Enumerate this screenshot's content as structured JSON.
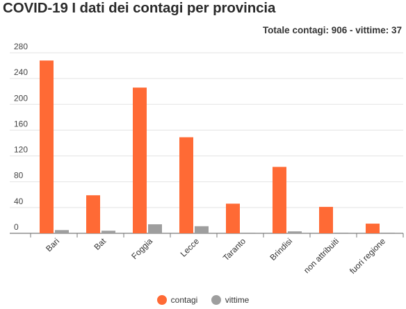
{
  "title": "COVID-19 I dati dei contagi per provincia",
  "subtitle": "Totale contagi: 906 - vittime: 37",
  "chart_data": {
    "type": "bar",
    "categories": [
      "Bari",
      "Bat",
      "Foggia",
      "Lecce",
      "Taranto",
      "Brindisi",
      "non attribuiti",
      "fuori regione"
    ],
    "series": [
      {
        "name": "contagi",
        "color": "#ff6a35",
        "values": [
          268,
          59,
          226,
          149,
          46,
          103,
          41,
          15
        ]
      },
      {
        "name": "vittime",
        "color": "#9e9e9e",
        "values": [
          5,
          4,
          14,
          11,
          1,
          3,
          0,
          0
        ]
      }
    ],
    "yticks": [
      0,
      40,
      80,
      120,
      160,
      200,
      240,
      280
    ],
    "ylim": [
      0,
      280
    ],
    "grid": true,
    "legend": "bottom-center"
  }
}
